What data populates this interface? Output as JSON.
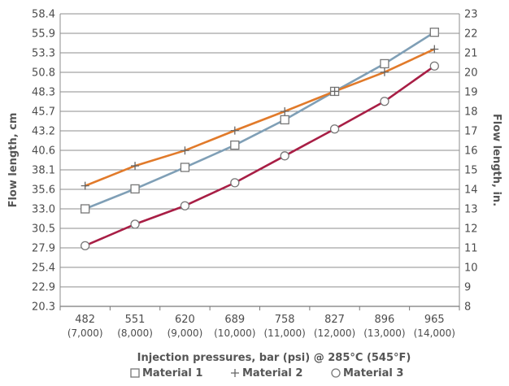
{
  "chart_data": {
    "type": "line",
    "title": "",
    "xlabel": "Injection pressures, bar (psi) @ 285°C (545°F)",
    "ylabel_left": "Flow length, cm",
    "ylabel_right": "Flow length, in.",
    "categories": [
      "482",
      "551",
      "620",
      "689",
      "758",
      "827",
      "896",
      "965"
    ],
    "categories_sub": [
      "(7,000)",
      "(8,000)",
      "(9,000)",
      "(10,000)",
      "(11,000)",
      "(12,000)",
      "(13,000)",
      "(14,000)"
    ],
    "y_left_ticks": [
      "20.3",
      "22.9",
      "25.4",
      "27.9",
      "30.5",
      "33.0",
      "35.6",
      "38.1",
      "40.6",
      "43.2",
      "45.7",
      "48.3",
      "50.8",
      "53.3",
      "55.9",
      "58.4"
    ],
    "y_right_ticks": [
      "8",
      "9",
      "10",
      "11",
      "12",
      "13",
      "14",
      "15",
      "16",
      "17",
      "18",
      "19",
      "20",
      "21",
      "22",
      "23"
    ],
    "ylim_left": [
      20.3,
      58.4
    ],
    "ylim_right": [
      8,
      23
    ],
    "grid": true,
    "legend_position": "bottom",
    "series": [
      {
        "name": "Material 1",
        "marker": "□",
        "color": "#7f9fb6",
        "values": [
          33.0,
          35.6,
          38.4,
          41.3,
          44.6,
          48.3,
          51.9,
          56.0
        ]
      },
      {
        "name": "Material 2",
        "marker": "+",
        "color": "#e17a2a",
        "values": [
          36.0,
          38.6,
          40.6,
          43.2,
          45.7,
          48.3,
          50.8,
          53.8
        ]
      },
      {
        "name": "Material 3",
        "marker": "○",
        "color": "#a81e45",
        "values": [
          28.2,
          31.0,
          33.4,
          36.4,
          39.9,
          43.4,
          47.0,
          51.6
        ]
      }
    ]
  }
}
